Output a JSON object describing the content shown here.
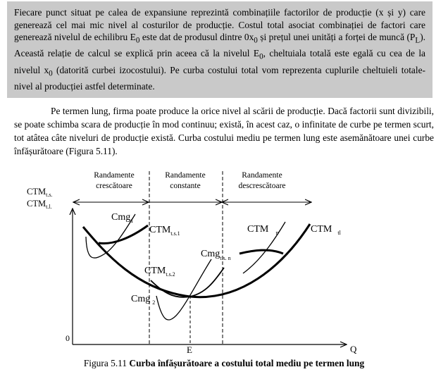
{
  "box_text": [
    "Fiecare punct situat pe calea de expansiune reprezintă combinațiile factorilor de producție (x și y) care generează cel mai mic nivel al costurilor de producție. Costul total asociat combinației de factori care generează nivelul de echilibru E",
    "0",
    " este dat de produsul dintre 0x",
    "0",
    " și prețul unei unități a forței de muncă (P",
    "L",
    "). Această relație de calcul se explică prin aceea că la nivelul E",
    "0",
    ", cheltuiala totală este egală cu cea de la nivelul x",
    "0",
    " (datorită curbei izocostului). Pe curba costului total vom reprezenta cuplurile cheltuieli totale-nivel al producției astfel determinate."
  ],
  "paragraph": "Pe termen lung, firma poate produce la orice nivel al scării de producție. Dacă factorii sunt divizibili, se poate schimba scara de producție în mod continuu; există, în acest caz, o infinitate de curbe pe termen scurt, tot atâtea câte niveluri de producție există. Curba costului mediu pe termen lung este asemănătoare unei curbe înfășurătoare (Figura 5.11).",
  "figure": {
    "regions": [
      {
        "line1": "Randamente",
        "line2": "crescătoare"
      },
      {
        "line1": "Randamente",
        "line2": "constante"
      },
      {
        "line1": "Randamente",
        "line2": "descrescătoare"
      }
    ],
    "y_label_1_main": "CTM",
    "y_label_1_sub": "t.s.",
    "y_label_2_main": "CTM",
    "y_label_2_sub": "t.l.",
    "origin": "0",
    "x_label": "Q",
    "e_label": "E",
    "curve_labels": {
      "cmg1_main": "Cmg",
      "cmg1_sub": "1",
      "ctm_ts1_main": "CTM",
      "ctm_ts1_sub": "t.s.1",
      "ctm_n_main": "CTM",
      "ctm_n_sub": "n",
      "ctm_tl_main": "CTM",
      "ctm_tl_sub": "tl",
      "cmg_tsn_main": "Cmg",
      "cmg_tsn_sub": "t.s. n",
      "ctm_ts2_main": "CTM",
      "ctm_ts2_sub": "t.s.2",
      "cmg2_main": "Cmg",
      "cmg2_sub": "2"
    }
  },
  "caption_prefix": "Figura 5.11 ",
  "caption_title": "Curba înfășurătoare a costului total mediu pe termen lung"
}
